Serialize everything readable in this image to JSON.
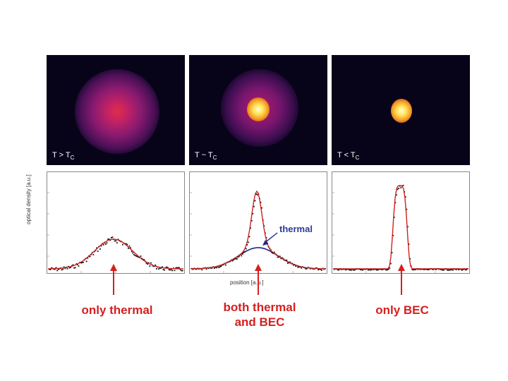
{
  "panels": [
    {
      "condition_prefix": "T > T",
      "condition_sub": "C",
      "caption_line1": "only thermal",
      "caption_line2": ""
    },
    {
      "condition_prefix": "T ~ T",
      "condition_sub": "C",
      "caption_line1": "both thermal",
      "caption_line2": "and BEC"
    },
    {
      "condition_prefix": "T < T",
      "condition_sub": "C",
      "caption_line1": "only BEC",
      "caption_line2": ""
    }
  ],
  "axes": {
    "ylabel": "optical density [a.u.]",
    "xlabel": "position [a.u.]"
  },
  "annotation": {
    "label": "thermal"
  },
  "colors": {
    "caption": "#d42020",
    "fit_curve": "#cc2222",
    "data_points": "#111111",
    "thermal_fit": "#1a2a8c",
    "image_background": "#07041a"
  }
}
